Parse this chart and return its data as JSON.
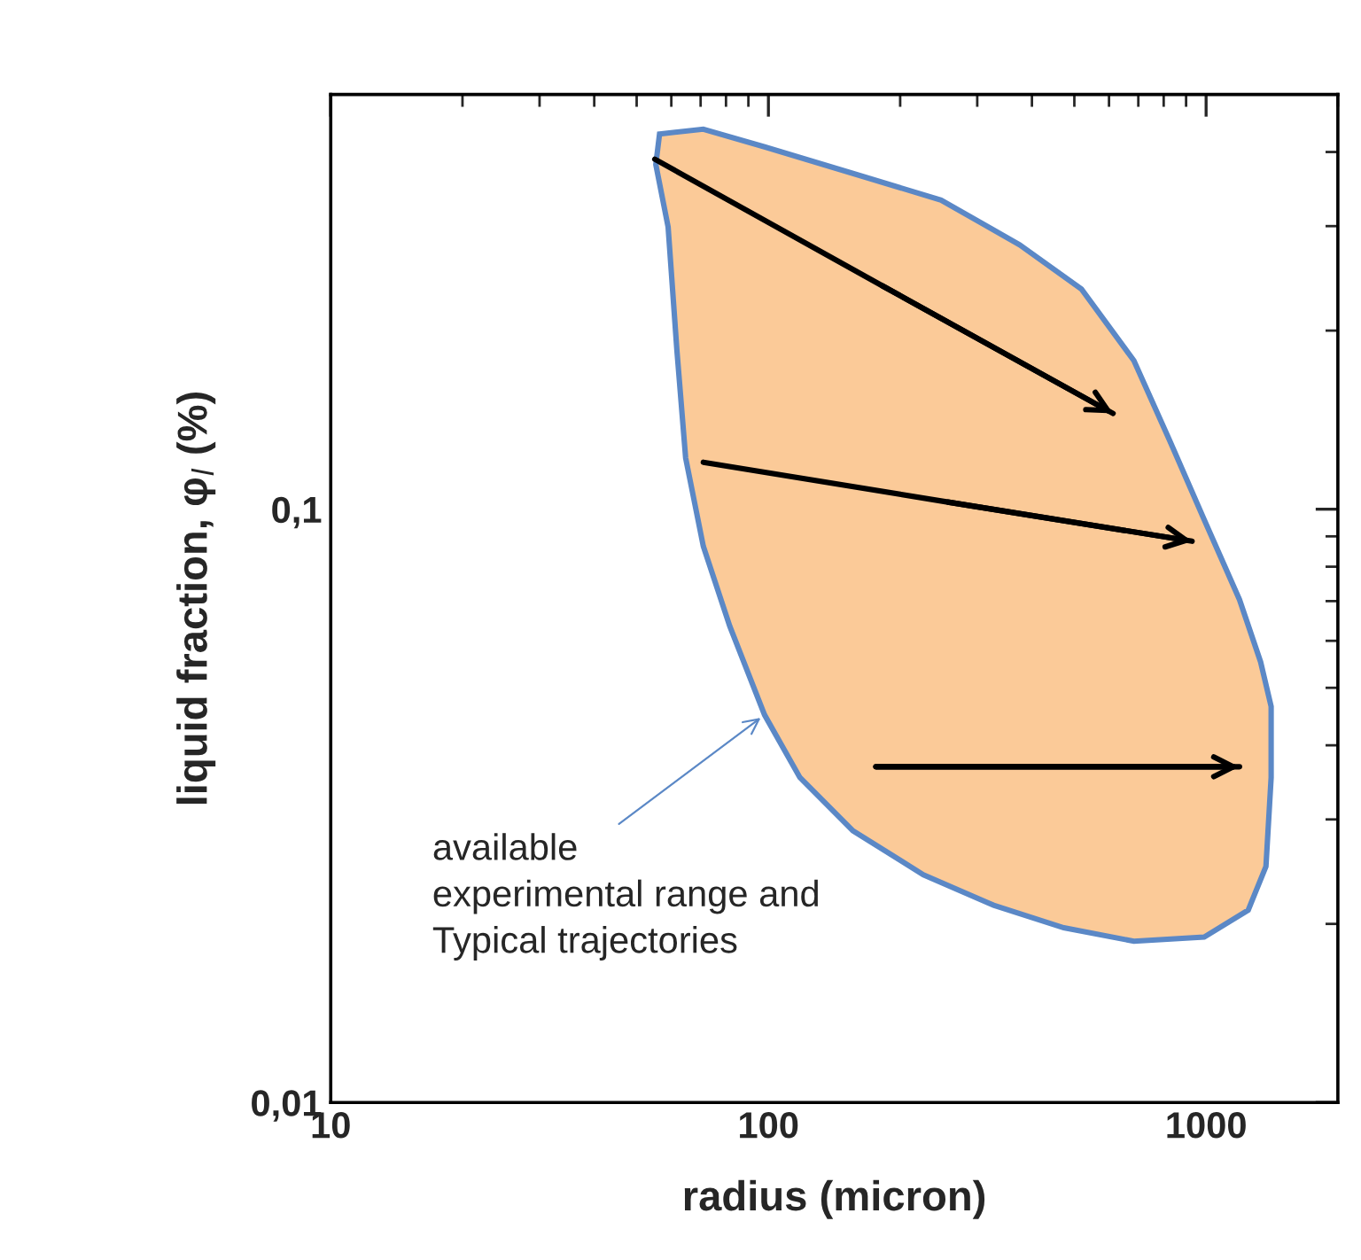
{
  "chart_data": {
    "type": "line",
    "xlabel": "radius (micron)",
    "ylabel": "liquid fraction, φ$_{l}$ (%)",
    "log": "xy",
    "xlim": [
      10,
      2000
    ],
    "ylim": [
      0.01,
      0.5
    ],
    "xticks": [
      10,
      100,
      1000
    ],
    "yticks": [
      {
        "value": 0.01,
        "label": "0,01"
      },
      {
        "value": 0.1,
        "label": "0,1"
      }
    ],
    "grid": false,
    "legend": false,
    "series": [
      {
        "type": "area",
        "color": "#fbca98",
        "x": [
          56.4,
          71,
          98,
          156,
          248,
          375,
          519,
          684,
          824,
          990,
          1192,
          1332,
          1408,
          1408,
          1370,
          1248,
          990,
          684,
          473,
          327,
          226,
          156,
          118,
          98,
          81.6,
          71,
          64.7,
          61.8,
          59,
          55.3
        ],
        "values": [
          0.429,
          0.437,
          0.408,
          0.368,
          0.332,
          0.279,
          0.235,
          0.178,
          0.131,
          0.096,
          0.0704,
          0.0553,
          0.0465,
          0.0353,
          0.025,
          0.0211,
          0.019,
          0.0187,
          0.0197,
          0.0215,
          0.0242,
          0.0287,
          0.0353,
          0.045,
          0.0635,
          0.0866,
          0.122,
          0.185,
          0.299,
          0.381
        ]
      },
      {
        "color": "#000000",
        "x": [
          55,
          182,
          613
        ],
        "values": [
          0.389,
          0.238,
          0.145
        ]
      },
      {
        "color": "#000000",
        "x": [
          71,
          257,
          929
        ],
        "values": [
          0.12,
          0.1028,
          0.0883
        ]
      },
      {
        "color": "#000000",
        "x": [
          176,
          1192
        ],
        "values": [
          0.0368,
          0.0368
        ]
      }
    ],
    "annotations": [
      {
        "text": "available\nexperimental range and\nTypical trajectories",
        "x": 98,
        "y": 0.045
      }
    ]
  }
}
